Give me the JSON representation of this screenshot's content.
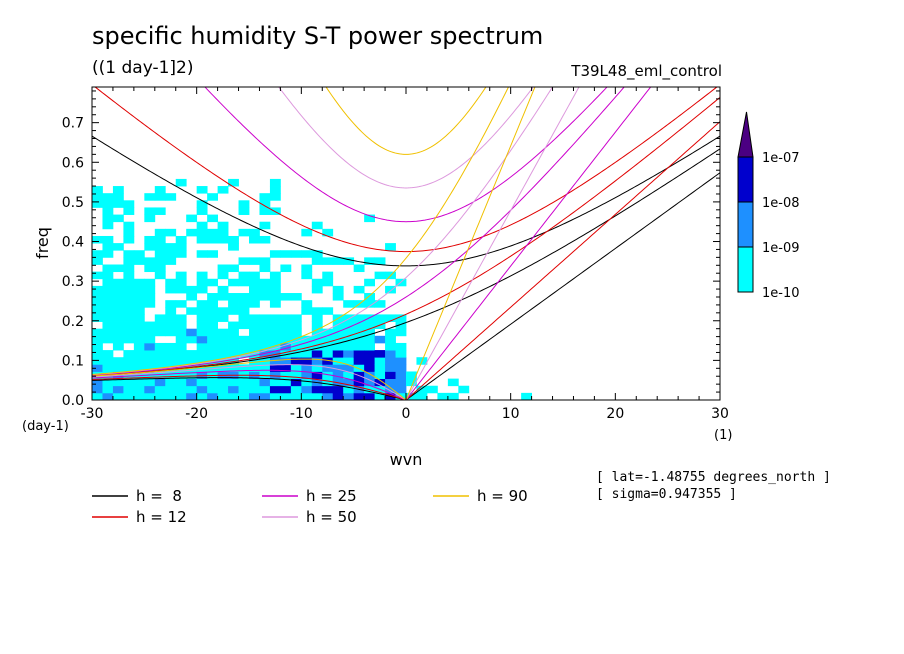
{
  "chart_data": {
    "type": "contour",
    "title": "specific humidity S-T power spectrum",
    "subtitle": "((1 day-1]2)",
    "run_label": "T39L48_eml_control",
    "xlabel": "wvn",
    "ylabel": "freq",
    "x_unit_label": "(1)",
    "y_unit_label": "(day-1)",
    "xlim": [
      -30,
      30
    ],
    "ylim": [
      0,
      0.79
    ],
    "x_ticks": [
      -30,
      -20,
      -10,
      0,
      10,
      20,
      30
    ],
    "x_tick_labels": [
      "-30",
      "-20",
      "-10",
      "0",
      "10",
      "20",
      "30"
    ],
    "y_ticks": [
      0.0,
      0.1,
      0.2,
      0.3,
      0.4,
      0.5,
      0.6,
      0.7
    ],
    "y_tick_labels": [
      "0.0",
      "0.1",
      "0.2",
      "0.3",
      "0.4",
      "0.5",
      "0.6",
      "0.7"
    ],
    "colorbar": {
      "levels": [
        "1e-10",
        "1e-09",
        "1e-08",
        "1e-07"
      ],
      "colors": [
        "#00ffff",
        "#1e90ff",
        "#0000cd",
        "#4b0082"
      ]
    },
    "dispersion_curves": [
      {
        "name": "h =  8",
        "h": 8,
        "color": "#000000"
      },
      {
        "name": "h = 12",
        "h": 12,
        "color": "#e00000"
      },
      {
        "name": "h = 25",
        "h": 25,
        "color": "#cc00cc"
      },
      {
        "name": "h = 50",
        "h": 50,
        "color": "#dd99dd"
      },
      {
        "name": "h = 90",
        "h": 90,
        "color": "#f0c000"
      }
    ],
    "notes": [
      "[ lat=-1.48755 degrees_north ]",
      "[ sigma=0.947355 ]"
    ]
  }
}
